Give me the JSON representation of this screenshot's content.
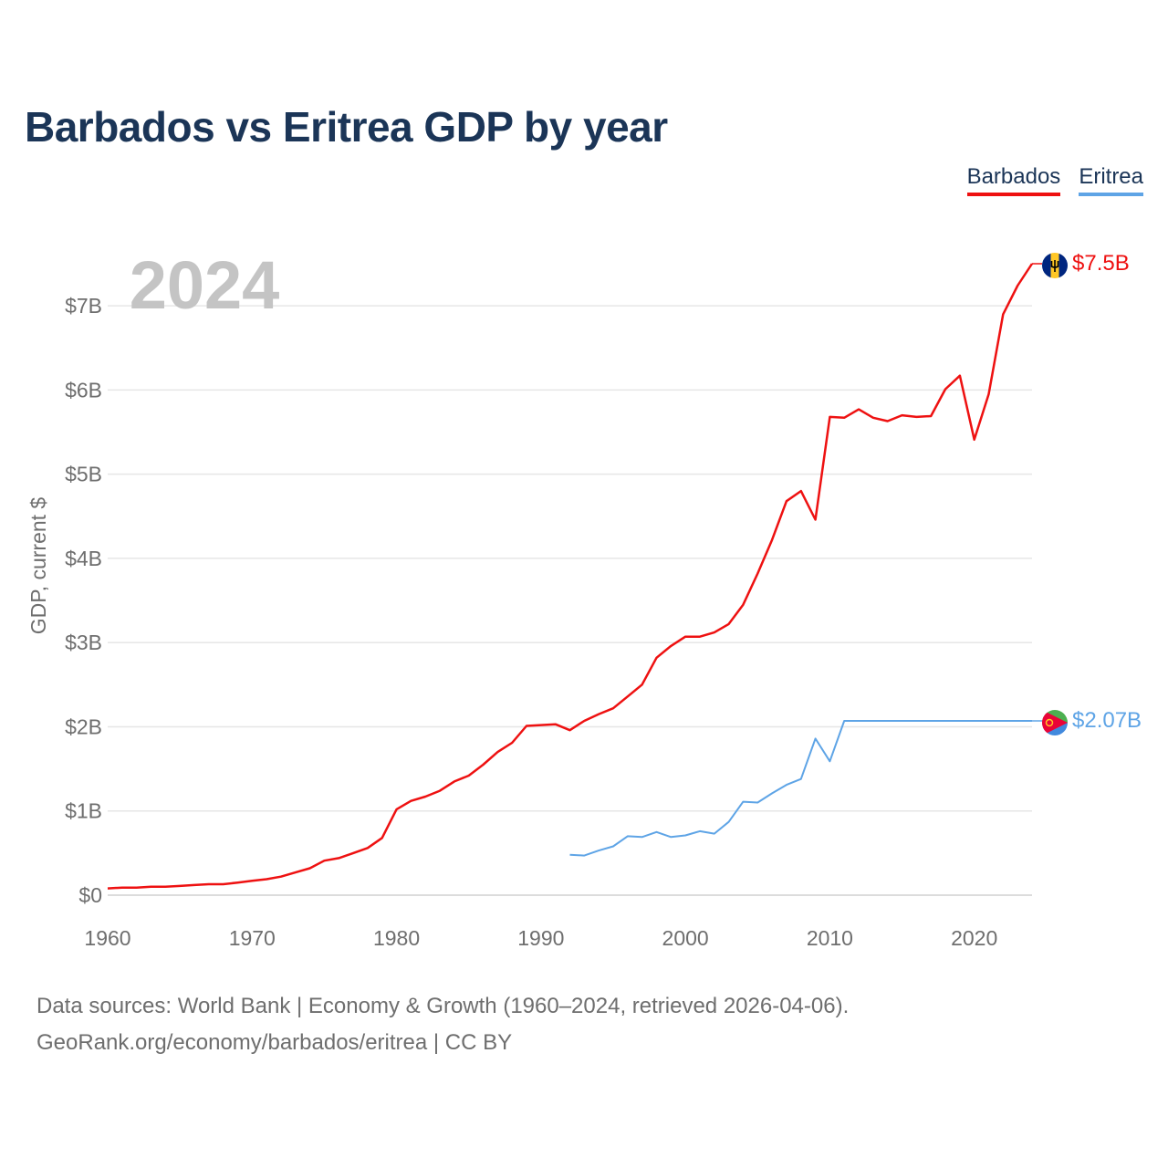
{
  "title": "Barbados vs Eritrea GDP by year",
  "legend": [
    {
      "label": "Barbados",
      "color": "#ee1111"
    },
    {
      "label": "Eritrea",
      "color": "#5ea4e6"
    }
  ],
  "footer": {
    "line1": "Data sources: World Bank | Economy & Growth (1960–2024, retrieved 2026-04-06).",
    "line2": "GeoRank.org/economy/barbados/eritrea | CC BY"
  },
  "chart_data": {
    "type": "line",
    "title": "Barbados vs Eritrea GDP by year",
    "year_label": "2024",
    "ylabel": "GDP, current $",
    "xlabel": "",
    "xlim": [
      1960,
      2024
    ],
    "ylim": [
      0,
      7.5
    ],
    "y_unit": "billions USD",
    "x_ticks": [
      "1960",
      "1970",
      "1980",
      "1990",
      "2000",
      "2010",
      "2020"
    ],
    "y_ticks": [
      {
        "value": 0,
        "label": "$0"
      },
      {
        "value": 1,
        "label": "$1B"
      },
      {
        "value": 2,
        "label": "$2B"
      },
      {
        "value": 3,
        "label": "$3B"
      },
      {
        "value": 4,
        "label": "$4B"
      },
      {
        "value": 5,
        "label": "$5B"
      },
      {
        "value": 6,
        "label": "$6B"
      },
      {
        "value": 7,
        "label": "$7B"
      }
    ],
    "grid": true,
    "series": [
      {
        "name": "Barbados",
        "color": "#ee1111",
        "end_label": "$7.5B",
        "flag_icon": "barbados-flag-icon",
        "x": [
          1960,
          1961,
          1962,
          1963,
          1964,
          1965,
          1966,
          1967,
          1968,
          1969,
          1970,
          1971,
          1972,
          1973,
          1974,
          1975,
          1976,
          1977,
          1978,
          1979,
          1980,
          1981,
          1982,
          1983,
          1984,
          1985,
          1986,
          1987,
          1988,
          1989,
          1990,
          1991,
          1992,
          1993,
          1994,
          1995,
          1996,
          1997,
          1998,
          1999,
          2000,
          2001,
          2002,
          2003,
          2004,
          2005,
          2006,
          2007,
          2008,
          2009,
          2010,
          2011,
          2012,
          2013,
          2014,
          2015,
          2016,
          2017,
          2018,
          2019,
          2020,
          2021,
          2022,
          2023,
          2024
        ],
        "values": [
          0.08,
          0.09,
          0.09,
          0.1,
          0.1,
          0.11,
          0.12,
          0.13,
          0.13,
          0.15,
          0.17,
          0.19,
          0.22,
          0.27,
          0.32,
          0.41,
          0.44,
          0.5,
          0.56,
          0.68,
          1.02,
          1.12,
          1.17,
          1.24,
          1.35,
          1.42,
          1.55,
          1.7,
          1.81,
          2.01,
          2.02,
          2.03,
          1.96,
          2.07,
          2.15,
          2.22,
          2.36,
          2.5,
          2.82,
          2.96,
          3.07,
          3.07,
          3.12,
          3.22,
          3.45,
          3.82,
          4.22,
          4.68,
          4.8,
          4.46,
          5.68,
          5.67,
          5.77,
          5.67,
          5.63,
          5.7,
          5.68,
          5.69,
          6.01,
          6.17,
          5.41,
          5.95,
          6.9,
          7.24,
          7.5
        ]
      },
      {
        "name": "Eritrea",
        "color": "#5ea4e6",
        "end_label": "$2.07B",
        "flag_icon": "eritrea-flag-icon",
        "x": [
          1992,
          1993,
          1994,
          1995,
          1996,
          1997,
          1998,
          1999,
          2000,
          2001,
          2002,
          2003,
          2004,
          2005,
          2006,
          2007,
          2008,
          2009,
          2010,
          2011,
          2024
        ],
        "values": [
          0.48,
          0.47,
          0.53,
          0.58,
          0.7,
          0.69,
          0.75,
          0.69,
          0.71,
          0.76,
          0.73,
          0.87,
          1.11,
          1.1,
          1.21,
          1.31,
          1.38,
          1.86,
          1.59,
          2.07,
          2.07
        ]
      }
    ]
  }
}
